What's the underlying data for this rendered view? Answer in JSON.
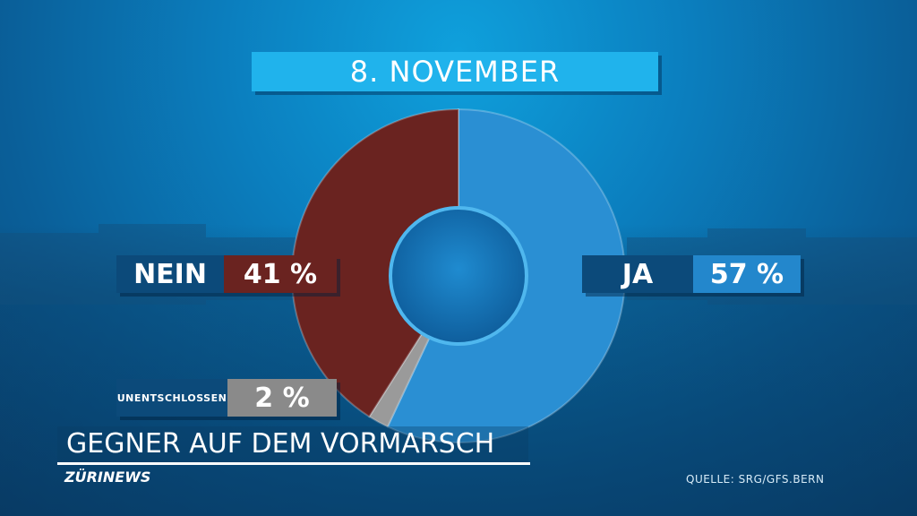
{
  "title": "8. NOVEMBER",
  "headline": "GEGNER AUF DEM VORMARSCH",
  "brand": "ZÜRINEWS",
  "source": "QUELLE: SRG/GFS.BERN",
  "labels": {
    "nein_label": "NEIN",
    "nein_value": "41 %",
    "ja_label": "JA",
    "ja_value": "57 %",
    "unentschlossen_label": "UNENTSCHLOSSEN",
    "unentschlossen_value": "2 %"
  },
  "chart_data": {
    "type": "pie",
    "title": "8. NOVEMBER",
    "categories": [
      "JA",
      "UNENTSCHLOSSEN",
      "NEIN"
    ],
    "values": [
      57,
      2,
      41
    ],
    "colors": [
      "#2a8fd3",
      "#9a9a9a",
      "#6a2320"
    ],
    "donut": true
  }
}
